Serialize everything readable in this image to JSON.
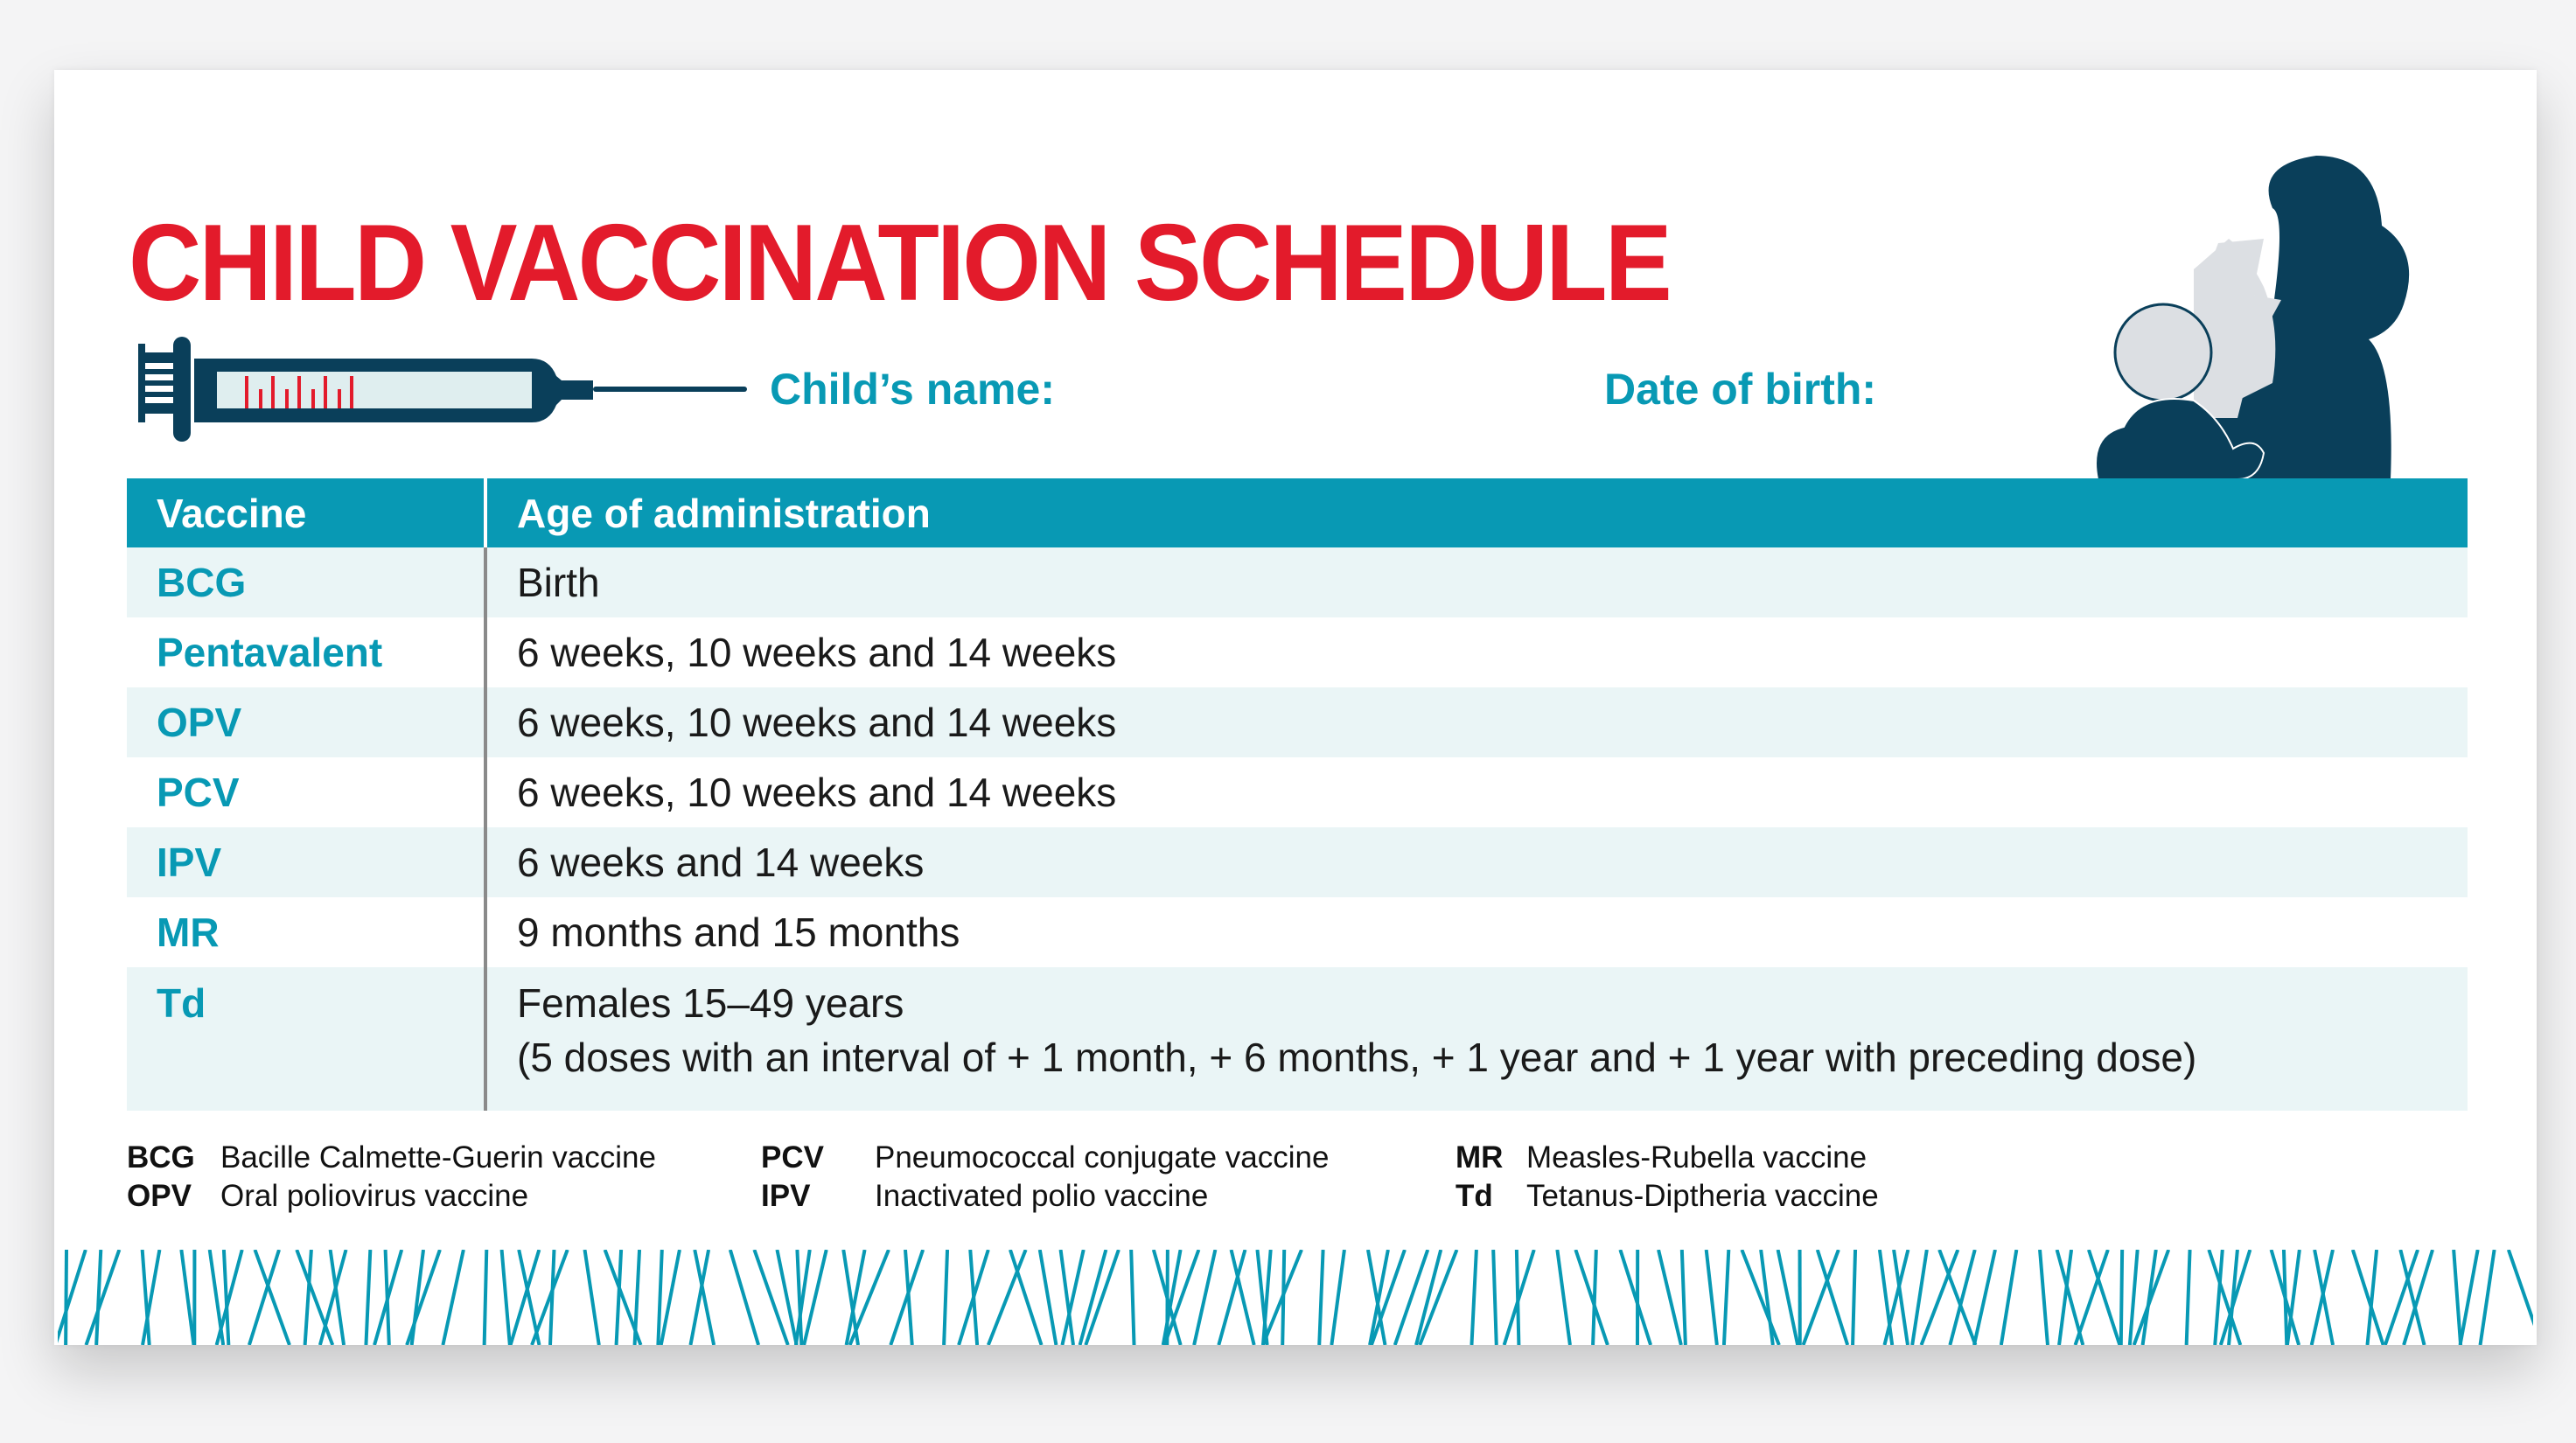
{
  "title": "CHILD VACCINATION SCHEDULE",
  "fields": {
    "child_name": "Child’s name:",
    "date_of_birth": "Date of birth:"
  },
  "colors": {
    "title": "#e31b2b",
    "accent": "#0899b4",
    "illustration": "#0a3f5a",
    "row_alt": "#eaf5f6"
  },
  "icons": [
    "syringe-icon",
    "mother-and-baby-illustration"
  ],
  "table": {
    "headers": [
      "Vaccine",
      "Age of administration"
    ],
    "rows": [
      {
        "vaccine": "BCG",
        "age": "Birth"
      },
      {
        "vaccine": "Pentavalent",
        "age": "6 weeks, 10 weeks and 14 weeks"
      },
      {
        "vaccine": "OPV",
        "age": "6 weeks, 10 weeks and 14 weeks"
      },
      {
        "vaccine": "PCV",
        "age": "6 weeks, 10 weeks and 14 weeks"
      },
      {
        "vaccine": "IPV",
        "age": "6 weeks and 14 weeks"
      },
      {
        "vaccine": "MR",
        "age": "9 months and 15 months"
      },
      {
        "vaccine": "Td",
        "age": "Females 15–49 years",
        "note": "(5 doses with an interval of + 1 month, + 6 months, + 1 year and + 1 year with preceding dose)"
      }
    ]
  },
  "legend": [
    {
      "abbr": "BCG",
      "desc": "Bacille Calmette-Guerin vaccine"
    },
    {
      "abbr": "OPV",
      "desc": "Oral poliovirus vaccine"
    },
    {
      "abbr": "PCV",
      "desc": "Pneumococcal conjugate vaccine"
    },
    {
      "abbr": "IPV",
      "desc": "Inactivated polio vaccine"
    },
    {
      "abbr": "MR",
      "desc": "Measles-Rubella vaccine"
    },
    {
      "abbr": "Td",
      "desc": "Tetanus-Diptheria vaccine"
    }
  ]
}
